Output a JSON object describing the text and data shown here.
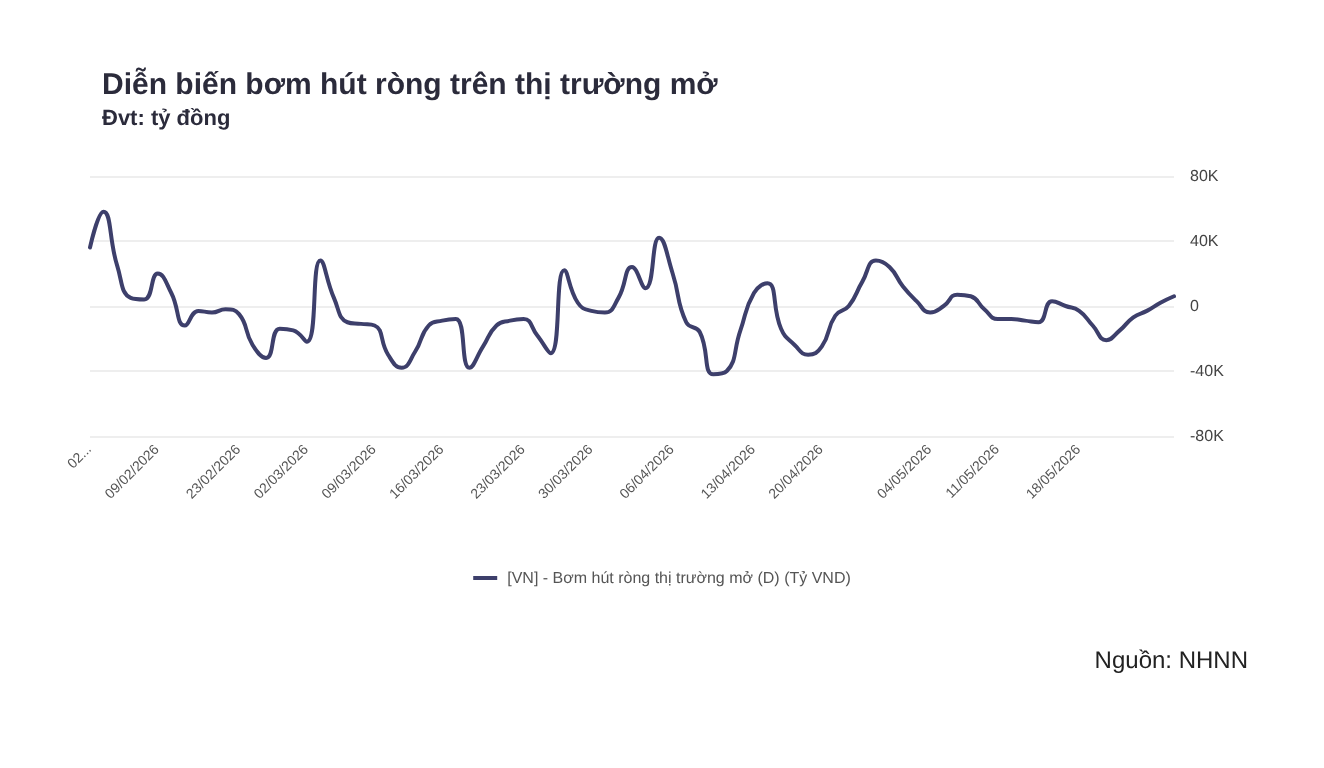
{
  "chart_data": {
    "type": "line",
    "title": "Diễn biến bơm hút ròng trên thị trường mở",
    "subtitle": "Đvt: tỷ đồng",
    "categories": [
      "02...",
      null,
      null,
      null,
      null,
      "09/02/2026",
      null,
      null,
      null,
      null,
      null,
      "23/02/2026",
      null,
      null,
      null,
      null,
      "02/03/2026",
      null,
      null,
      null,
      null,
      "09/03/2026",
      null,
      null,
      null,
      null,
      "16/03/2026",
      null,
      null,
      null,
      null,
      null,
      "23/03/2026",
      null,
      null,
      null,
      null,
      "30/03/2026",
      null,
      null,
      null,
      null,
      null,
      "06/04/2026",
      null,
      null,
      null,
      null,
      null,
      "13/04/2026",
      null,
      null,
      null,
      null,
      "20/04/2026",
      null,
      null,
      null,
      null,
      null,
      null,
      null,
      "04/05/2026",
      null,
      null,
      null,
      null,
      "11/05/2026",
      null,
      null,
      null,
      null,
      null,
      "18/05/2026",
      null,
      null,
      null,
      null,
      null,
      null,
      null
    ],
    "series": [
      {
        "name": "[VN] - Bơm hút ròng thị trường mở (D) (Tỷ VND)",
        "color": "#3d3f6b",
        "values": [
          36000,
          58000,
          25000,
          5000,
          4000,
          20000,
          8000,
          -12000,
          -3000,
          -4000,
          -2000,
          -5000,
          -24000,
          -32000,
          -14000,
          -15000,
          -22000,
          28000,
          5000,
          -10000,
          -11000,
          -12000,
          -30000,
          -38000,
          -28000,
          -12000,
          -9000,
          -8000,
          -38000,
          -25000,
          -12000,
          -9000,
          -8000,
          -18000,
          -29000,
          22000,
          2000,
          -3000,
          -4000,
          5000,
          24000,
          11000,
          42000,
          20000,
          -10000,
          -16000,
          -42000,
          -40000,
          -15000,
          8000,
          14000,
          -14000,
          -24000,
          -30000,
          -25000,
          -6000,
          0,
          15000,
          28000,
          24000,
          12000,
          3000,
          -4000,
          0,
          7000,
          6000,
          -2000,
          -8000,
          -8000,
          -9000,
          -10000,
          3000,
          0,
          -3000,
          -12000,
          -21000,
          -15000,
          -7000,
          -3000,
          2000,
          6000
        ]
      }
    ],
    "ylim": [
      -80000,
      80000
    ],
    "yticks": [
      {
        "value": -80000,
        "label": "-80K"
      },
      {
        "value": -40000,
        "label": "-40K"
      },
      0,
      {
        "value": 40000,
        "label": "40K"
      },
      {
        "value": 80000,
        "label": "80K"
      }
    ],
    "grid": "y",
    "legend": "bottom",
    "marker": "none",
    "line_style": "solid",
    "annotations": [
      "Nguồn: NHNN"
    ]
  }
}
